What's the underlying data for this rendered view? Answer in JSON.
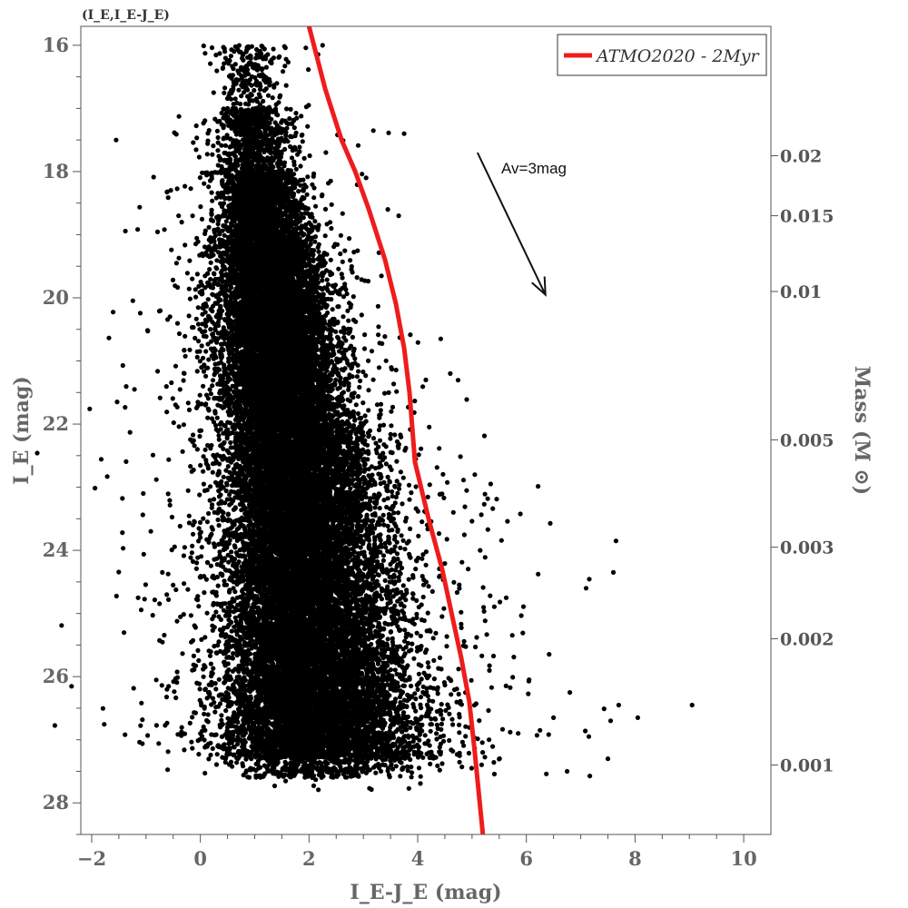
{
  "plot_id": "(I_E,I_E-J_E)",
  "colors": {
    "points": "#000000",
    "isochrone": "#ee1c1c",
    "axis": "#555555",
    "tick_text": "#666666"
  },
  "chart_data": {
    "type": "scatter",
    "xlabel": "I_E-J_E (mag)",
    "ylabel": "I_E (mag)",
    "y2label": "Mass (M ⊙)",
    "xlim": [
      -2.2,
      10.5
    ],
    "ylim": [
      28.5,
      15.7
    ],
    "y_inverted": true,
    "x_ticks": [
      -2,
      0,
      2,
      4,
      6,
      8,
      10
    ],
    "x_tick_labels": [
      "−2",
      "0",
      "2",
      "4",
      "6",
      "8",
      "10"
    ],
    "y_ticks": [
      16,
      18,
      20,
      22,
      24,
      26,
      28
    ],
    "y_tick_labels": [
      "16",
      "18",
      "20",
      "22",
      "24",
      "26",
      "28"
    ],
    "mass_ticks": [
      {
        "label": "0.02",
        "at_mag": 17.75
      },
      {
        "label": "0.015",
        "at_mag": 18.7
      },
      {
        "label": "0.01",
        "at_mag": 19.9
      },
      {
        "label": "0.005",
        "at_mag": 22.25
      },
      {
        "label": "0.003",
        "at_mag": 23.95
      },
      {
        "label": "0.002",
        "at_mag": 25.4
      },
      {
        "label": "0.001",
        "at_mag": 27.4
      }
    ],
    "grid": false,
    "legend_position": "top-right",
    "series": [
      {
        "kind": "scatter",
        "approx_points": 45000,
        "core_locus": [
          [
            0.9,
            16.1
          ],
          [
            1.0,
            17.5
          ],
          [
            1.1,
            18.5
          ],
          [
            1.25,
            19.5
          ],
          [
            1.4,
            20.5
          ],
          [
            1.55,
            21.5
          ],
          [
            1.7,
            22.5
          ],
          [
            1.8,
            23.5
          ],
          [
            1.85,
            24.5
          ],
          [
            1.95,
            25.5
          ],
          [
            2.05,
            26.5
          ],
          [
            2.15,
            27.3
          ]
        ],
        "outliers": [
          [
            -1.55,
            17.5
          ],
          [
            -0.4,
            18.7
          ],
          [
            -0.15,
            19.7
          ],
          [
            0.05,
            21.4
          ],
          [
            -1.05,
            23.1
          ],
          [
            -0.7,
            24.35
          ],
          [
            -0.5,
            24.55
          ],
          [
            0.45,
            16.1
          ],
          [
            2.25,
            16.0
          ],
          [
            3.75,
            17.4
          ],
          [
            3.05,
            18.1
          ],
          [
            3.45,
            18.6
          ],
          [
            3.65,
            18.7
          ],
          [
            4.15,
            21.3
          ],
          [
            4.6,
            21.2
          ],
          [
            5.05,
            22.8
          ],
          [
            5.15,
            24.0
          ],
          [
            7.1,
            24.6
          ],
          [
            7.65,
            23.85
          ],
          [
            7.6,
            24.35
          ],
          [
            6.8,
            26.25
          ],
          [
            7.15,
            26.95
          ],
          [
            7.55,
            26.7
          ],
          [
            7.7,
            26.45
          ],
          [
            8.05,
            26.65
          ],
          [
            9.05,
            26.45
          ],
          [
            7.5,
            27.3
          ],
          [
            6.75,
            27.5
          ],
          [
            6.05,
            26.05
          ],
          [
            5.85,
            26.9
          ],
          [
            6.5,
            26.65
          ],
          [
            6.25,
            26.85
          ]
        ]
      },
      {
        "name": "ATMO2020 - 2Myr",
        "kind": "line",
        "x": [
          2.0,
          2.3,
          2.6,
          2.85,
          3.1,
          3.4,
          3.6,
          3.75,
          3.85,
          3.95,
          4.2,
          4.45,
          4.65,
          4.8,
          4.95,
          5.05,
          5.2
        ],
        "y": [
          15.7,
          16.7,
          17.5,
          18.0,
          18.6,
          19.4,
          20.1,
          20.8,
          21.5,
          22.6,
          23.5,
          24.3,
          25.1,
          25.7,
          26.4,
          27.2,
          28.5
        ]
      }
    ],
    "annotations": [
      {
        "text": "Av=3mag",
        "arrow_from": [
          5.1,
          17.7
        ],
        "arrow_to": [
          6.35,
          19.95
        ]
      }
    ]
  }
}
